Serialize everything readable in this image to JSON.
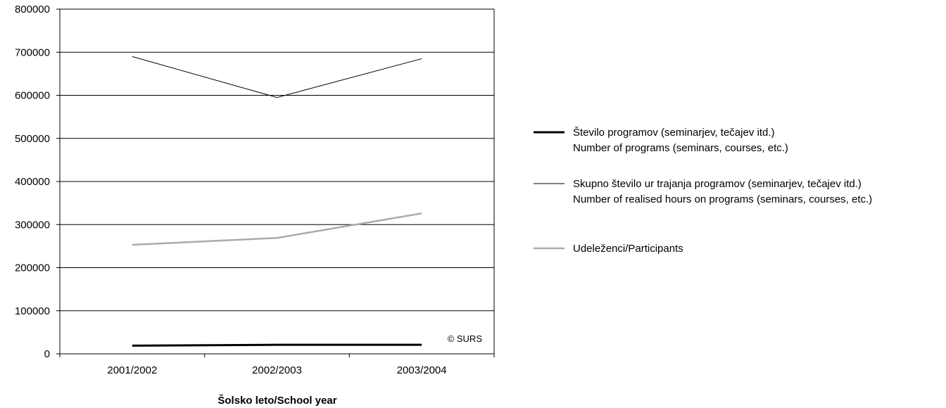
{
  "chart_data": {
    "type": "line",
    "categories": [
      "2001/2002",
      "2002/2003",
      "2003/2004"
    ],
    "xlabel": "Šolsko leto/School year",
    "ylabel": "",
    "ylim": [
      0,
      800000
    ],
    "yticks": [
      "0",
      "100000",
      "200000",
      "300000",
      "400000",
      "500000",
      "600000",
      "700000",
      "800000"
    ],
    "grid": true,
    "legend_position": "right",
    "series": [
      {
        "name": "Število programov (seminarjev, tečajev itd.)",
        "name_en": "Number of programs (seminars, courses, etc.)",
        "values": [
          19000,
          21000,
          21000
        ],
        "color": "#000000",
        "style": "thick"
      },
      {
        "name": "Skupno število ur trajanja programov (seminarjev, tečajev itd.)",
        "name_en": "Number of realised hours on programs (seminars, courses, etc.)",
        "values": [
          690000,
          595000,
          685000
        ],
        "color": "#000000",
        "style": "thin"
      },
      {
        "name": "Udeleženci/Participants",
        "name_en": "",
        "values": [
          253000,
          269000,
          326000
        ],
        "color": "#aaaaaa",
        "style": "medium"
      }
    ],
    "annotation": "© SURS"
  }
}
